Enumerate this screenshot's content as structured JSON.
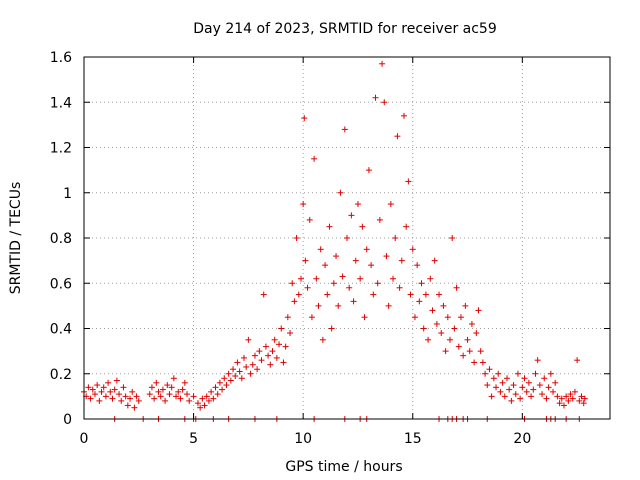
{
  "chart_data": {
    "type": "scatter",
    "title": "Day 214 of 2023, SRMTID for receiver ac59",
    "xlabel": "GPS time / hours",
    "ylabel": "SRMTID / TECUs",
    "xlim": [
      0,
      24
    ],
    "ylim": [
      0,
      1.6
    ],
    "xticks": [
      0,
      5,
      10,
      15,
      20
    ],
    "xtick_labels": [
      "0",
      "5",
      "10",
      "15",
      "20"
    ],
    "yticks": [
      0,
      0.2,
      0.4,
      0.6,
      0.8,
      1,
      1.2,
      1.4,
      1.6
    ],
    "ytick_labels": [
      "0",
      "0.2",
      "0.4",
      "0.6",
      "0.8",
      "1",
      "1.2",
      "1.4",
      "1.6"
    ],
    "grid": true,
    "marker": "+",
    "color": "#e00000",
    "series": [
      {
        "name": "SRMTID",
        "points": [
          [
            0.0,
            0.12
          ],
          [
            0.1,
            0.1
          ],
          [
            0.2,
            0.14
          ],
          [
            0.3,
            0.09
          ],
          [
            0.4,
            0.13
          ],
          [
            0.5,
            0.11
          ],
          [
            0.6,
            0.15
          ],
          [
            0.7,
            0.08
          ],
          [
            0.8,
            0.12
          ],
          [
            0.9,
            0.14
          ],
          [
            1.0,
            0.1
          ],
          [
            1.1,
            0.16
          ],
          [
            1.2,
            0.12
          ],
          [
            1.3,
            0.09
          ],
          [
            1.4,
            0.13
          ],
          [
            1.5,
            0.17
          ],
          [
            1.6,
            0.11
          ],
          [
            1.7,
            0.08
          ],
          [
            1.8,
            0.14
          ],
          [
            1.9,
            0.1
          ],
          [
            2.0,
            0.06
          ],
          [
            2.1,
            0.09
          ],
          [
            2.2,
            0.12
          ],
          [
            2.3,
            0.05
          ],
          [
            2.4,
            0.1
          ],
          [
            2.5,
            0.08
          ],
          [
            3.0,
            0.11
          ],
          [
            3.1,
            0.14
          ],
          [
            3.2,
            0.09
          ],
          [
            3.3,
            0.16
          ],
          [
            3.4,
            0.12
          ],
          [
            3.5,
            0.1
          ],
          [
            3.6,
            0.13
          ],
          [
            3.7,
            0.08
          ],
          [
            3.8,
            0.15
          ],
          [
            3.9,
            0.11
          ],
          [
            4.0,
            0.14
          ],
          [
            4.1,
            0.18
          ],
          [
            4.2,
            0.1
          ],
          [
            4.3,
            0.12
          ],
          [
            4.4,
            0.09
          ],
          [
            4.5,
            0.13
          ],
          [
            4.6,
            0.16
          ],
          [
            4.7,
            0.11
          ],
          [
            4.8,
            0.08
          ],
          [
            5.0,
            0.1
          ],
          [
            5.2,
            0.07
          ],
          [
            5.3,
            0.05
          ],
          [
            5.4,
            0.09
          ],
          [
            5.5,
            0.06
          ],
          [
            5.6,
            0.1
          ],
          [
            5.7,
            0.08
          ],
          [
            5.8,
            0.12
          ],
          [
            5.9,
            0.09
          ],
          [
            6.0,
            0.14
          ],
          [
            6.1,
            0.11
          ],
          [
            6.2,
            0.16
          ],
          [
            6.3,
            0.13
          ],
          [
            6.4,
            0.18
          ],
          [
            6.5,
            0.15
          ],
          [
            6.6,
            0.2
          ],
          [
            6.7,
            0.17
          ],
          [
            6.8,
            0.22
          ],
          [
            6.9,
            0.19
          ],
          [
            7.0,
            0.25
          ],
          [
            7.1,
            0.21
          ],
          [
            7.2,
            0.18
          ],
          [
            7.3,
            0.27
          ],
          [
            7.4,
            0.23
          ],
          [
            7.5,
            0.35
          ],
          [
            7.6,
            0.2
          ],
          [
            7.7,
            0.24
          ],
          [
            7.8,
            0.28
          ],
          [
            7.9,
            0.22
          ],
          [
            8.0,
            0.3
          ],
          [
            8.1,
            0.26
          ],
          [
            8.2,
            0.55
          ],
          [
            8.3,
            0.32
          ],
          [
            8.4,
            0.28
          ],
          [
            8.5,
            0.24
          ],
          [
            8.6,
            0.3
          ],
          [
            8.7,
            0.35
          ],
          [
            8.8,
            0.27
          ],
          [
            8.9,
            0.33
          ],
          [
            9.0,
            0.4
          ],
          [
            9.1,
            0.25
          ],
          [
            9.2,
            0.32
          ],
          [
            9.3,
            0.45
          ],
          [
            9.4,
            0.38
          ],
          [
            9.5,
            0.6
          ],
          [
            9.6,
            0.52
          ],
          [
            9.7,
            0.8
          ],
          [
            9.8,
            0.55
          ],
          [
            9.9,
            0.62
          ],
          [
            10.0,
            0.95
          ],
          [
            10.05,
            1.33
          ],
          [
            10.1,
            0.7
          ],
          [
            10.2,
            0.58
          ],
          [
            10.3,
            0.88
          ],
          [
            10.4,
            0.45
          ],
          [
            10.5,
            1.15
          ],
          [
            10.6,
            0.62
          ],
          [
            10.7,
            0.5
          ],
          [
            10.8,
            0.75
          ],
          [
            10.9,
            0.35
          ],
          [
            11.0,
            0.68
          ],
          [
            11.1,
            0.55
          ],
          [
            11.2,
            0.85
          ],
          [
            11.3,
            0.4
          ],
          [
            11.4,
            0.6
          ],
          [
            11.5,
            0.72
          ],
          [
            11.6,
            0.5
          ],
          [
            11.7,
            1.0
          ],
          [
            11.8,
            0.63
          ],
          [
            11.9,
            1.28
          ],
          [
            12.0,
            0.8
          ],
          [
            12.1,
            0.58
          ],
          [
            12.2,
            0.9
          ],
          [
            12.3,
            0.52
          ],
          [
            12.4,
            0.7
          ],
          [
            12.5,
            0.95
          ],
          [
            12.6,
            0.62
          ],
          [
            12.7,
            0.85
          ],
          [
            12.8,
            0.45
          ],
          [
            12.9,
            0.75
          ],
          [
            13.0,
            1.1
          ],
          [
            13.1,
            0.68
          ],
          [
            13.2,
            0.55
          ],
          [
            13.3,
            1.42
          ],
          [
            13.4,
            0.6
          ],
          [
            13.5,
            0.88
          ],
          [
            13.6,
            1.57
          ],
          [
            13.7,
            1.4
          ],
          [
            13.8,
            0.72
          ],
          [
            13.9,
            0.5
          ],
          [
            14.0,
            0.95
          ],
          [
            14.1,
            0.62
          ],
          [
            14.2,
            0.8
          ],
          [
            14.3,
            1.25
          ],
          [
            14.4,
            0.58
          ],
          [
            14.5,
            0.7
          ],
          [
            14.6,
            1.34
          ],
          [
            14.7,
            0.85
          ],
          [
            14.8,
            1.05
          ],
          [
            14.9,
            0.55
          ],
          [
            15.0,
            0.75
          ],
          [
            15.1,
            0.45
          ],
          [
            15.2,
            0.68
          ],
          [
            15.3,
            0.52
          ],
          [
            15.4,
            0.6
          ],
          [
            15.5,
            0.4
          ],
          [
            15.6,
            0.55
          ],
          [
            15.7,
            0.35
          ],
          [
            15.8,
            0.62
          ],
          [
            15.9,
            0.48
          ],
          [
            16.0,
            0.7
          ],
          [
            16.1,
            0.42
          ],
          [
            16.2,
            0.55
          ],
          [
            16.3,
            0.38
          ],
          [
            16.4,
            0.5
          ],
          [
            16.5,
            0.3
          ],
          [
            16.6,
            0.45
          ],
          [
            16.7,
            0.35
          ],
          [
            16.8,
            0.8
          ],
          [
            16.9,
            0.4
          ],
          [
            17.0,
            0.58
          ],
          [
            17.1,
            0.32
          ],
          [
            17.2,
            0.45
          ],
          [
            17.3,
            0.28
          ],
          [
            17.4,
            0.5
          ],
          [
            17.5,
            0.35
          ],
          [
            17.6,
            0.3
          ],
          [
            17.7,
            0.42
          ],
          [
            17.8,
            0.25
          ],
          [
            17.9,
            0.38
          ],
          [
            18.0,
            0.48
          ],
          [
            18.1,
            0.3
          ],
          [
            18.2,
            0.25
          ],
          [
            18.3,
            0.2
          ],
          [
            18.4,
            0.15
          ],
          [
            18.5,
            0.22
          ],
          [
            18.6,
            0.1
          ],
          [
            18.7,
            0.18
          ],
          [
            18.8,
            0.14
          ],
          [
            18.9,
            0.2
          ],
          [
            19.0,
            0.12
          ],
          [
            19.1,
            0.16
          ],
          [
            19.2,
            0.1
          ],
          [
            19.3,
            0.18
          ],
          [
            19.4,
            0.13
          ],
          [
            19.5,
            0.08
          ],
          [
            19.6,
            0.15
          ],
          [
            19.7,
            0.11
          ],
          [
            19.8,
            0.2
          ],
          [
            19.9,
            0.09
          ],
          [
            20.0,
            0.14
          ],
          [
            20.1,
            0.18
          ],
          [
            20.2,
            0.12
          ],
          [
            20.3,
            0.16
          ],
          [
            20.4,
            0.1
          ],
          [
            20.5,
            0.13
          ],
          [
            20.6,
            0.2
          ],
          [
            20.7,
            0.26
          ],
          [
            20.8,
            0.15
          ],
          [
            20.9,
            0.11
          ],
          [
            21.0,
            0.18
          ],
          [
            21.1,
            0.09
          ],
          [
            21.2,
            0.14
          ],
          [
            21.3,
            0.2
          ],
          [
            21.4,
            0.12
          ],
          [
            21.5,
            0.16
          ],
          [
            21.6,
            0.1
          ],
          [
            21.7,
            0.07
          ],
          [
            21.8,
            0.09
          ],
          [
            21.9,
            0.06
          ],
          [
            22.0,
            0.1
          ],
          [
            22.1,
            0.08
          ],
          [
            22.2,
            0.11
          ],
          [
            22.3,
            0.09
          ],
          [
            22.4,
            0.12
          ],
          [
            22.5,
            0.26
          ],
          [
            22.6,
            0.08
          ],
          [
            22.7,
            0.1
          ],
          [
            22.8,
            0.07
          ],
          [
            22.85,
            0.09
          ],
          [
            1.4,
            0.0
          ],
          [
            2.7,
            0.0
          ],
          [
            3.4,
            0.0
          ],
          [
            4.6,
            0.0
          ],
          [
            5.0,
            0.0
          ],
          [
            5.1,
            0.0
          ],
          [
            5.9,
            0.0
          ],
          [
            6.6,
            0.0
          ],
          [
            7.8,
            0.0
          ],
          [
            8.8,
            0.0
          ],
          [
            10.5,
            0.0
          ],
          [
            11.9,
            0.0
          ],
          [
            12.6,
            0.0
          ],
          [
            12.9,
            0.0
          ],
          [
            16.2,
            0.0
          ],
          [
            16.6,
            0.0
          ],
          [
            16.8,
            0.0
          ],
          [
            17.0,
            0.0
          ],
          [
            17.3,
            0.0
          ],
          [
            17.5,
            0.0
          ],
          [
            18.4,
            0.0
          ],
          [
            20.1,
            0.0
          ],
          [
            21.1,
            0.0
          ],
          [
            21.3,
            0.0
          ],
          [
            21.5,
            0.0
          ],
          [
            22.0,
            0.0
          ],
          [
            22.6,
            0.0
          ]
        ]
      }
    ]
  }
}
